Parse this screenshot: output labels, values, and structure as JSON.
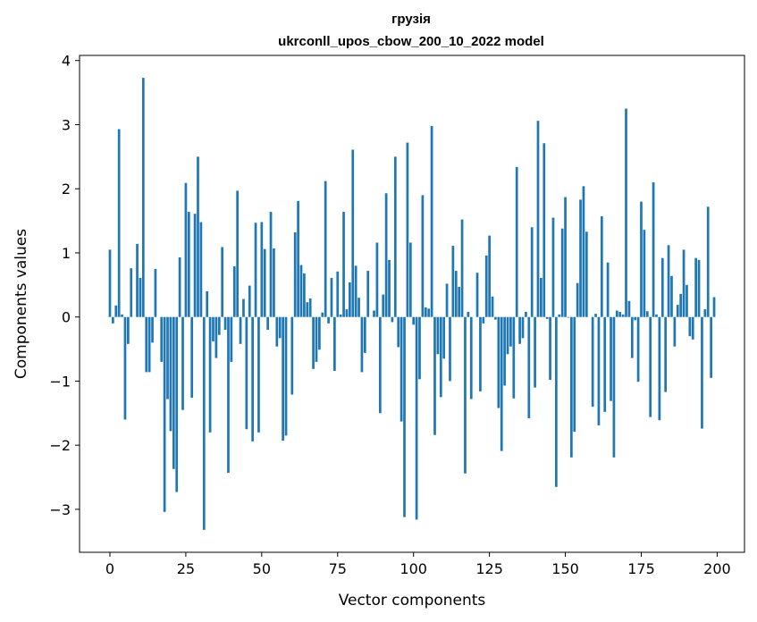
{
  "chart_data": {
    "type": "bar",
    "title_line1": "грузія",
    "title_line2": "ukrconll_upos_cbow_200_10_2022 model",
    "xlabel": "Vector components",
    "ylabel": "Components values",
    "xlim": [
      -10,
      209
    ],
    "ylim": [
      -3.67,
      4.08
    ],
    "xticks": [
      0,
      25,
      50,
      75,
      100,
      125,
      150,
      175,
      200
    ],
    "yticks": [
      -3,
      -2,
      -1,
      0,
      1,
      2,
      3,
      4
    ],
    "bar_color": "#1f77b4",
    "grid": false,
    "x": [
      0,
      1,
      2,
      3,
      4,
      5,
      6,
      7,
      8,
      9,
      10,
      11,
      12,
      13,
      14,
      15,
      16,
      17,
      18,
      19,
      20,
      21,
      22,
      23,
      24,
      25,
      26,
      27,
      28,
      29,
      30,
      31,
      32,
      33,
      34,
      35,
      36,
      37,
      38,
      39,
      40,
      41,
      42,
      43,
      44,
      45,
      46,
      47,
      48,
      49,
      50,
      51,
      52,
      53,
      54,
      55,
      56,
      57,
      58,
      59,
      60,
      61,
      62,
      63,
      64,
      65,
      66,
      67,
      68,
      69,
      70,
      71,
      72,
      73,
      74,
      75,
      76,
      77,
      78,
      79,
      80,
      81,
      82,
      83,
      84,
      85,
      86,
      87,
      88,
      89,
      90,
      91,
      92,
      93,
      94,
      95,
      96,
      97,
      98,
      99,
      100,
      101,
      102,
      103,
      104,
      105,
      106,
      107,
      108,
      109,
      110,
      111,
      112,
      113,
      114,
      115,
      116,
      117,
      118,
      119,
      120,
      121,
      122,
      123,
      124,
      125,
      126,
      127,
      128,
      129,
      130,
      131,
      132,
      133,
      134,
      135,
      136,
      137,
      138,
      139,
      140,
      141,
      142,
      143,
      144,
      145,
      146,
      147,
      148,
      149,
      150,
      151,
      152,
      153,
      154,
      155,
      156,
      157,
      158,
      159,
      160,
      161,
      162,
      163,
      164,
      165,
      166,
      167,
      168,
      169,
      170,
      171,
      172,
      173,
      174,
      175,
      176,
      177,
      178,
      179,
      180,
      181,
      182,
      183,
      184,
      185,
      186,
      187,
      188,
      189,
      190,
      191,
      192,
      193,
      194,
      195,
      196,
      197,
      198,
      199
    ],
    "values": [
      1.05,
      -0.1,
      0.18,
      2.93,
      0.04,
      -1.6,
      -0.42,
      0.76,
      0.0,
      1.14,
      0.61,
      3.73,
      -0.86,
      -0.86,
      -0.4,
      0.75,
      0.0,
      -0.7,
      -3.04,
      -1.28,
      -1.78,
      -2.37,
      -2.73,
      0.93,
      -1.45,
      2.09,
      1.64,
      -1.26,
      1.61,
      2.5,
      1.48,
      -3.32,
      0.4,
      -1.8,
      -0.38,
      -0.64,
      -0.28,
      1.09,
      -0.2,
      -2.43,
      -0.7,
      0.79,
      1.97,
      -0.42,
      0.28,
      -1.75,
      0.49,
      -1.94,
      1.47,
      -1.8,
      1.48,
      1.06,
      -0.2,
      1.64,
      1.07,
      -0.46,
      -0.33,
      -1.93,
      -1.85,
      0.0,
      -1.21,
      1.32,
      1.81,
      0.81,
      0.68,
      0.23,
      0.29,
      -0.81,
      -0.7,
      -0.51,
      0.07,
      2.12,
      -0.1,
      0.61,
      -0.84,
      0.71,
      0.04,
      1.64,
      0.12,
      0.54,
      2.61,
      0.8,
      0.3,
      -0.86,
      -0.56,
      0.72,
      0.0,
      0.1,
      1.16,
      -1.5,
      0.35,
      1.93,
      0.89,
      -0.08,
      2.5,
      -0.47,
      -1.63,
      -3.12,
      2.72,
      1.16,
      -0.12,
      -3.16,
      -0.97,
      1.9,
      0.15,
      0.13,
      2.98,
      -1.84,
      -0.58,
      -1.25,
      -0.65,
      0.52,
      -1.0,
      1.11,
      0.72,
      0.47,
      1.52,
      -2.44,
      0.08,
      -1.28,
      0.0,
      0.69,
      -1.16,
      -0.1,
      0.96,
      1.27,
      0.32,
      -0.04,
      -1.42,
      -2.09,
      -1.07,
      -0.58,
      -0.46,
      -1.27,
      2.34,
      -0.42,
      -0.33,
      0.08,
      -1.58,
      1.4,
      -1.1,
      3.06,
      0.61,
      2.71,
      -0.03,
      -0.98,
      1.55,
      -2.65,
      0.04,
      1.38,
      1.87,
      -0.01,
      -2.19,
      -1.79,
      0.53,
      1.83,
      2.04,
      1.33,
      0.0,
      -1.4,
      0.05,
      -1.69,
      1.57,
      -1.48,
      0.85,
      -1.31,
      -2.19,
      0.1,
      0.08,
      0.04,
      3.25,
      0.25,
      -0.64,
      -0.05,
      -1.01,
      1.8,
      1.36,
      0.09,
      -1.56,
      2.1,
      0.04,
      -1.61,
      0.92,
      -1.17,
      1.12,
      0.64,
      -0.46,
      0.19,
      0.36,
      1.05,
      0.5,
      -0.3,
      -0.35,
      0.92,
      0.89,
      -1.74,
      0.12,
      1.72,
      -0.95,
      0.31
    ]
  }
}
